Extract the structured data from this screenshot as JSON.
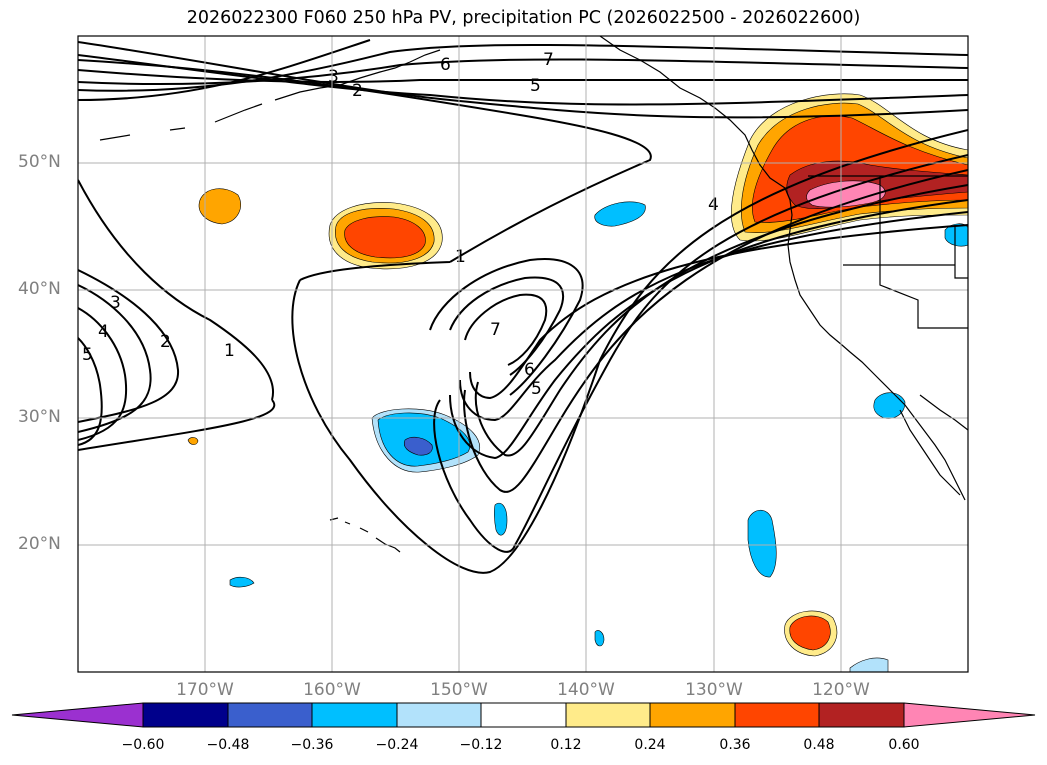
{
  "title": "2026022300 F060 250 hPa PV, precipitation PC (2026022500 - 2026022600)",
  "latitude_labels": [
    "50°N",
    "40°N",
    "30°N",
    "20°N"
  ],
  "longitude_labels": [
    "170°W",
    "160°W",
    "150°W",
    "140°W",
    "130°W",
    "120°W"
  ],
  "colorbar": {
    "ticks": [
      "−0.60",
      "−0.48",
      "−0.36",
      "−0.24",
      "−0.12",
      "0.12",
      "0.24",
      "0.36",
      "0.48",
      "0.60"
    ],
    "colors": [
      "#9b30d0",
      "#00008b",
      "#3a5fcd",
      "#00bfff",
      "#b2e2fb",
      "#ffffff",
      "#ffeb8a",
      "#ffa500",
      "#ff4500",
      "#b22222",
      "#ff85b4"
    ]
  },
  "contour_labels": [
    "1",
    "1",
    "2",
    "2",
    "3",
    "3",
    "4",
    "4",
    "5",
    "5",
    "5",
    "6",
    "6",
    "7",
    "7"
  ],
  "colors": {
    "coast": "#000000",
    "grid": "#b0b0b0",
    "label": "#808080"
  }
}
